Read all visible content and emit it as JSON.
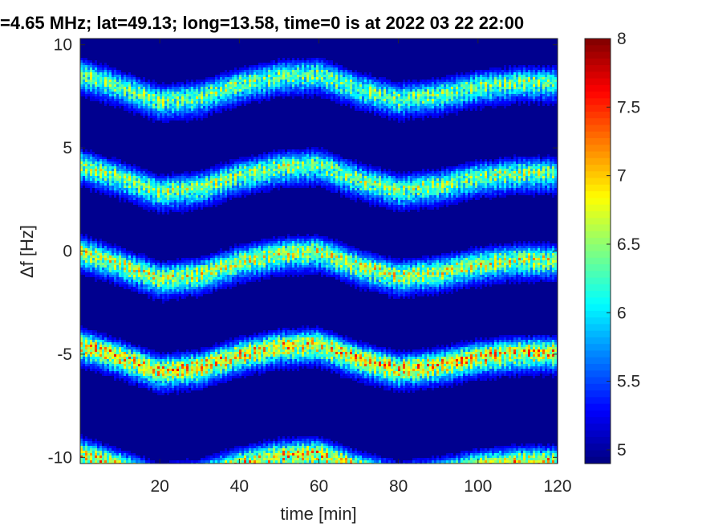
{
  "chart_data": {
    "type": "heatmap",
    "title": "=4.65 MHz;  lat=49.13; long=13.58, time=0 is at 2022 03 22 22:00",
    "xlabel": "time [min]",
    "ylabel": "Δf [Hz]",
    "xlim": [
      0,
      120
    ],
    "ylim": [
      -10.3,
      10.3
    ],
    "xticks": [
      20,
      40,
      60,
      80,
      100,
      120
    ],
    "xtick_labels": [
      "20",
      "40",
      "60",
      "80",
      "100",
      "120"
    ],
    "yticks": [
      10,
      5,
      0,
      -5,
      -10
    ],
    "ytick_labels": [
      "10",
      "5",
      "0",
      "-5",
      "-10"
    ],
    "colorbar": {
      "colormap": "jet",
      "clim": [
        4.9,
        8.0
      ],
      "ticks": [
        8,
        7.5,
        7,
        6.5,
        6,
        5.5,
        5
      ],
      "tick_labels": [
        "8",
        "7.5",
        "7",
        "6.5",
        "6",
        "5.5",
        "5"
      ]
    },
    "background_value": 4.95,
    "band_profile": {
      "time": [
        0,
        10,
        20,
        30,
        40,
        50,
        60,
        70,
        80,
        90,
        100,
        110,
        120
      ],
      "offset": [
        0.4,
        -0.2,
        -0.9,
        -0.7,
        -0.1,
        0.3,
        0.4,
        -0.3,
        -0.8,
        -0.6,
        -0.2,
        0.0,
        0.0
      ]
    },
    "bands": [
      {
        "center": 8.2,
        "peak": 7.0
      },
      {
        "center": 3.8,
        "peak": 7.1
      },
      {
        "center": -0.4,
        "peak": 7.3
      },
      {
        "center": -4.9,
        "peak": 7.7
      },
      {
        "center": -10.2,
        "peak": 7.6
      }
    ]
  }
}
